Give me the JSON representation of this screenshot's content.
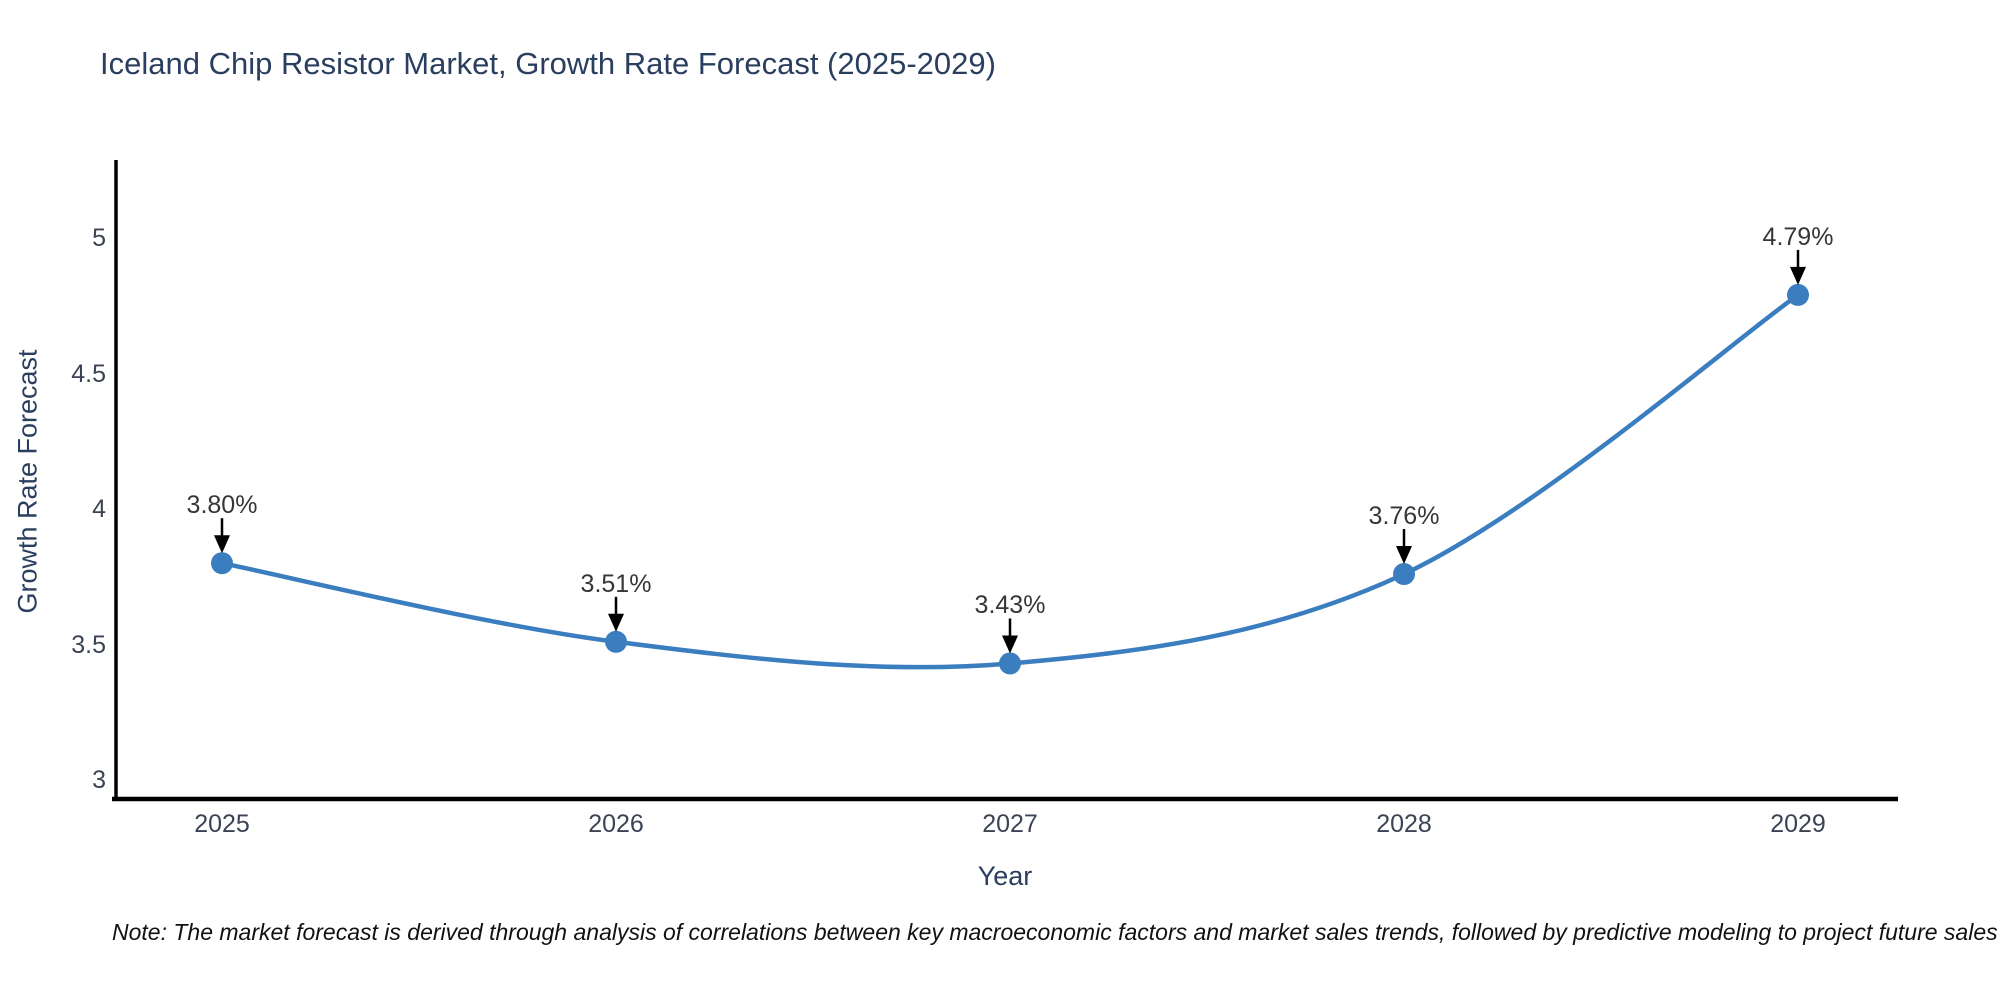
{
  "title": "Iceland Chip Resistor Market, Growth Rate Forecast (2025-2029)",
  "note": "Note: The market forecast is derived through analysis of correlations between key macroeconomic factors and market sales trends, followed by predictive modeling to project future sales",
  "chart_data": {
    "type": "line",
    "title": "Iceland Chip Resistor Market, Growth Rate Forecast (2025-2029)",
    "xlabel": "Year",
    "ylabel": "Growth Rate Forecast",
    "categories": [
      "2025",
      "2026",
      "2027",
      "2028",
      "2029"
    ],
    "series": [
      {
        "name": "Growth Rate Forecast",
        "values": [
          3.8,
          3.51,
          3.43,
          3.76,
          4.79
        ]
      }
    ],
    "point_labels": [
      "3.80%",
      "3.51%",
      "3.43%",
      "3.76%",
      "4.79%"
    ],
    "y_ticks": [
      "3",
      "3.5",
      "4",
      "4.5",
      "5"
    ],
    "y_tick_values": [
      3,
      3.5,
      4,
      4.5,
      5
    ],
    "ylim": [
      2.93,
      5.29
    ],
    "grid": false,
    "legend": "none",
    "smooth": true,
    "line_color": "#3a7ebf",
    "marker_color": "#3a7ebf",
    "arrow_color": "#000000",
    "axis_color": "#000000",
    "title_color": "#2a3f5f",
    "tick_color": "#3b4455"
  }
}
